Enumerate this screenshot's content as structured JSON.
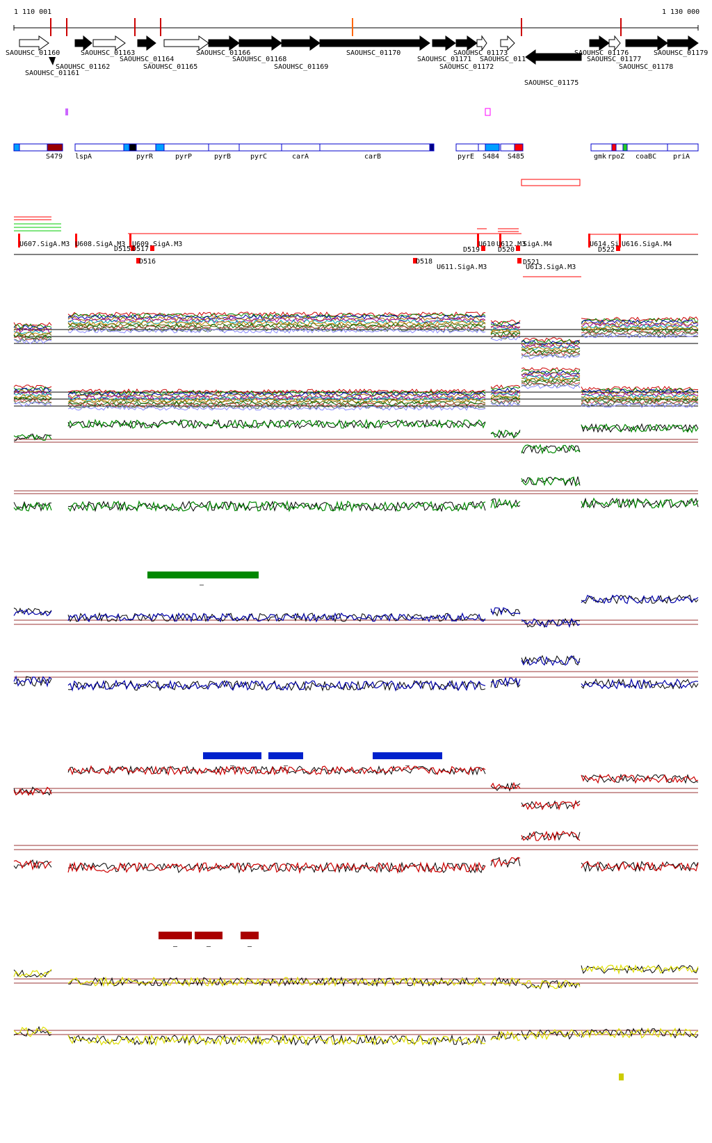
{
  "coordinates": {
    "start": "1 110 001",
    "end": "1 130 000"
  },
  "genes": [
    "SAOUHSC_01160",
    "SAOUHSC_01161",
    "SAOUHSC_01162",
    "SAOUHSC_01163",
    "SAOUHSC_01164",
    "SAOUHSC_01165",
    "SAOUHSC_01166",
    "SAOUHSC_01168",
    "SAOUHSC_01169",
    "SAOUHSC_01170",
    "SAOUHSC_01171",
    "SAOUHSC_01172",
    "SAOUHSC_01173",
    "SAOUHSC_011",
    "SAOUHSC_01175",
    "SAOUHSC_01176",
    "SAOUHSC_01177",
    "SAOUHSC_01178",
    "SAOUHSC_01179"
  ],
  "segments": [
    "S479",
    "lspA",
    "pyrR",
    "pyrP",
    "pyrB",
    "pyrC",
    "carA",
    "carB",
    "pyrE",
    "S484",
    "S485",
    "gmk",
    "rpoZ",
    "coaBC",
    "priA"
  ],
  "features_upper": [
    "U607.SigA.M3",
    "U608.SigA.M3",
    "U609.SigA.M3",
    "U610",
    "U612.M3",
    "SigA.M4",
    "U614.Si",
    "U616.SigA.M4"
  ],
  "features_lower": [
    "D515",
    "D517",
    "D516",
    "D518",
    "D519",
    "D520",
    "D521",
    "U611.SigA.M3",
    "U613.SigA.M3",
    "D522"
  ],
  "colors": {
    "gene_fill": "#000000",
    "gene_outline": "#000000",
    "segment_outline": "#0000cc",
    "segment_red": "#ff0000",
    "segment_darkred": "#990000",
    "segment_cyan": "#00a0ff",
    "track_green": "#008800",
    "track_blue": "#0000aa",
    "track_red": "#cc0000",
    "track_yellow": "#dddd00",
    "bar_green": "#008800",
    "bar_blue": "#0022cc",
    "bar_red": "#aa0000",
    "bar_yellow": "#cccc00",
    "threshold": "#993333"
  },
  "bar_marks": {
    "green": [
      "–"
    ],
    "blue": [
      "–",
      "–",
      "–"
    ],
    "red": [
      "–",
      "–",
      "–"
    ]
  }
}
